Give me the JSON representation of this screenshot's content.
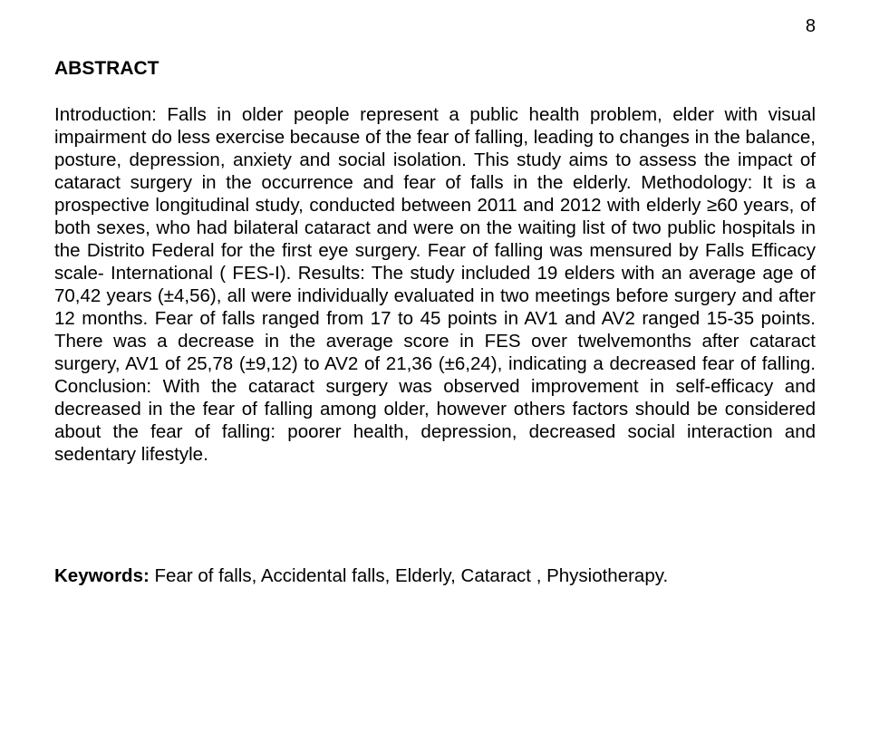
{
  "page_number": "8",
  "heading": "ABSTRACT",
  "p_intro": "Introduction: Falls in older people represent a public health problem, elder with visual impairment do less exercise because of the fear of falling, leading to changes in the balance, posture, depression, anxiety and social isolation. This study aims to assess the impact of cataract surgery in the occurrence and fear of falls in the elderly. Methodology: It is a prospective longitudinal study, conducted between 2011 and 2012 with elderly ≥60 years, of both sexes, who had bilateral cataract and were on the waiting list of two public hospitals in the Distrito Federal for the first eye surgery. Fear of falling was mensured by Falls Efficacy scale- International ( FES-I). Results: The study included 19 elders with an average age of 70,42  years (±4,56), all were individually evaluated in two meetings before surgery and after 12 months. Fear of falls ranged from 17 to 45 points in AV1 and AV2 ranged 15-35 points. There was a decrease in the average score in FES over twelvemonths after cataract surgery, AV1 of 25,78 (±9,12) to AV2 of 21,36 (±6,24), indicating a decreased fear of falling. Conclusion: With the cataract surgery was observed improvement in self-efficacy and decreased in the fear of falling among older, however others factors should be considered about the fear of falling: poorer health, depression, decreased social interaction and sedentary lifestyle.",
  "keywords_label": "Keywords:",
  "keywords_text": " Fear of falls, Accidental falls, Elderly, Cataract , Physiotherapy."
}
